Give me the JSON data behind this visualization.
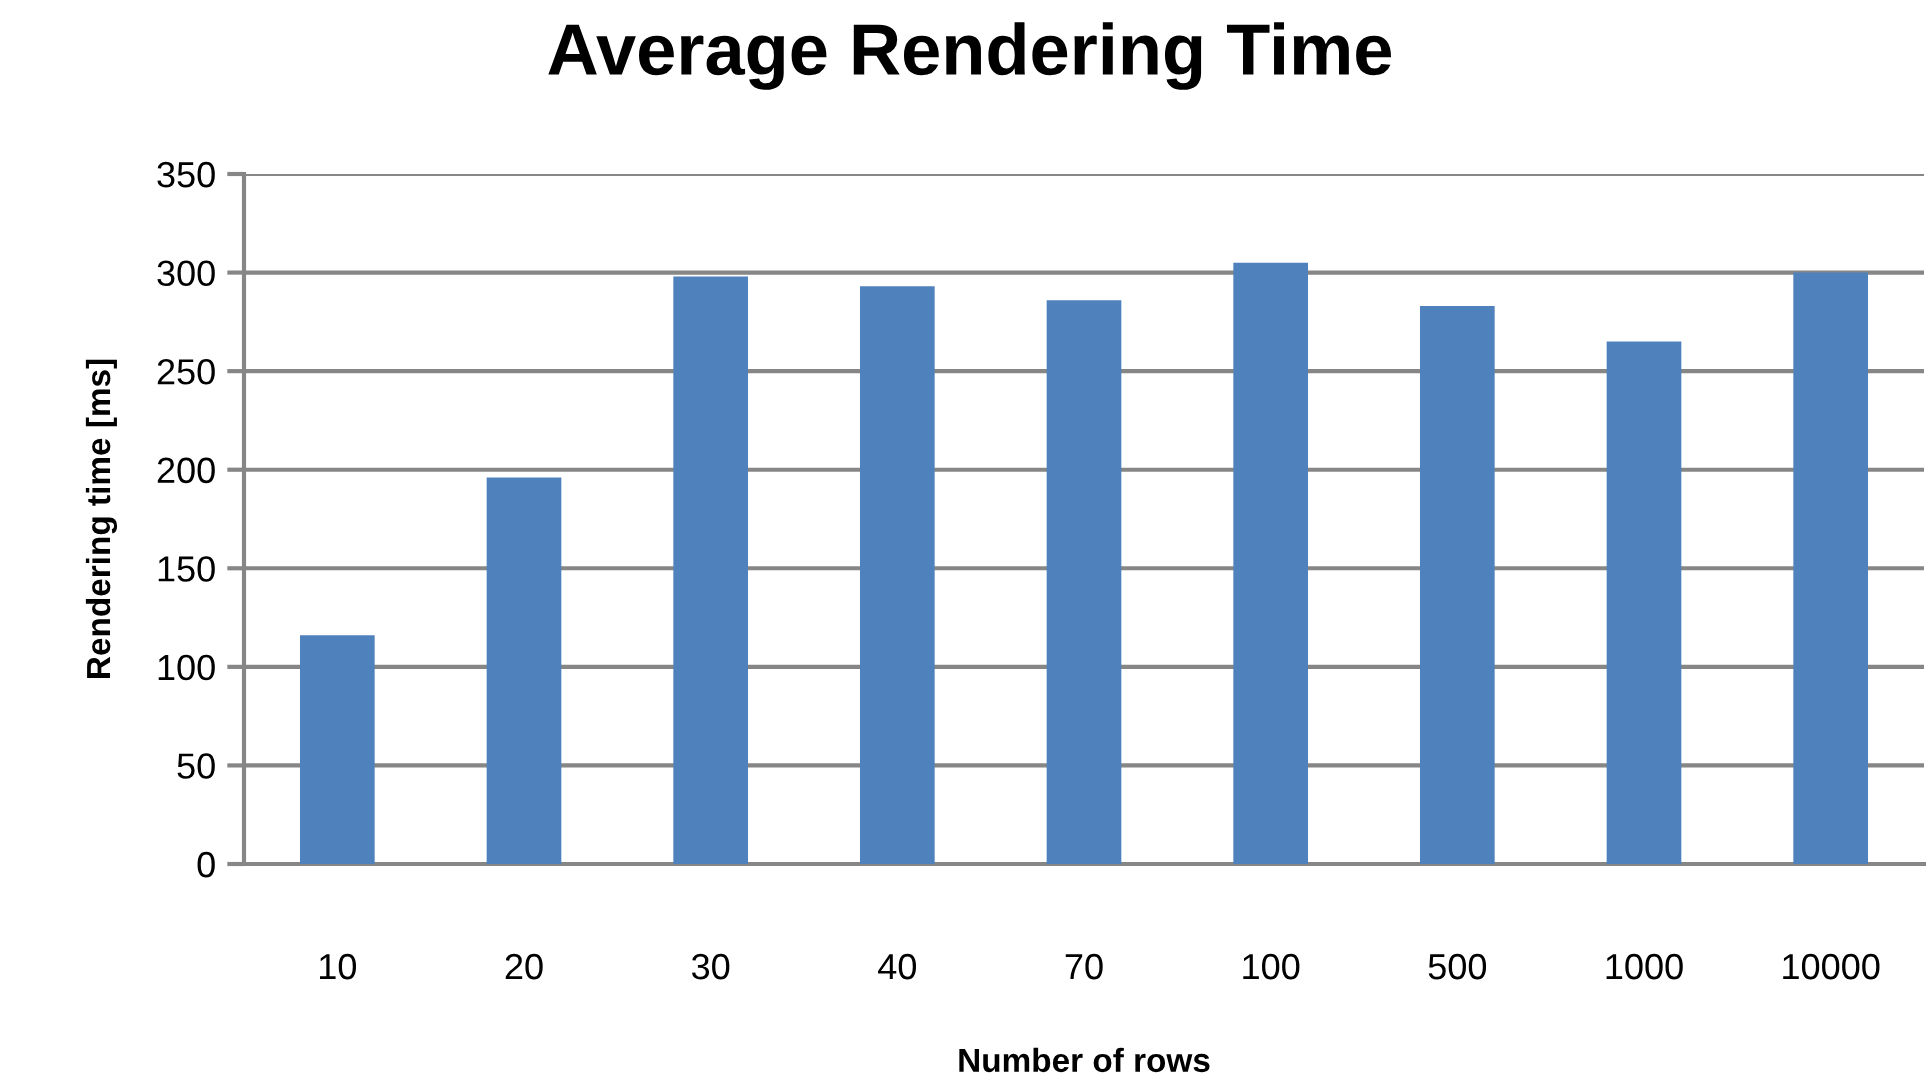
{
  "chart_data": {
    "type": "bar",
    "title": "Average Rendering Time",
    "xlabel": "Number of rows",
    "ylabel": "Rendering time [ms]",
    "categories": [
      "10",
      "20",
      "30",
      "40",
      "70",
      "100",
      "500",
      "1000",
      "10000"
    ],
    "values": [
      116,
      196,
      298,
      293,
      286,
      305,
      283,
      265,
      300
    ],
    "color": "#4f81bd",
    "ylim": [
      0,
      350
    ],
    "yticks": [
      0,
      50,
      100,
      150,
      200,
      250,
      300,
      350
    ],
    "grid": "y"
  }
}
